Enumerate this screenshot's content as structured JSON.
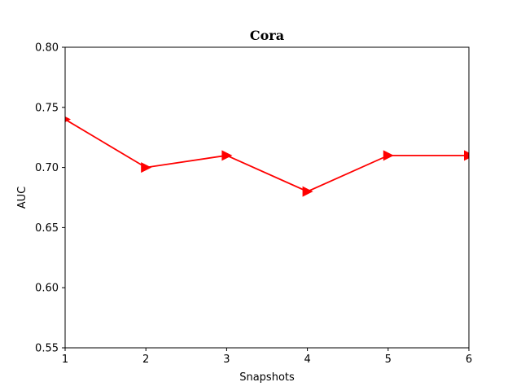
{
  "chart_data": {
    "type": "line",
    "title": "Cora",
    "xlabel": "Snapshots",
    "ylabel": "AUC",
    "x": [
      1,
      2,
      3,
      4,
      5,
      6
    ],
    "xticks": [
      "1",
      "2",
      "3",
      "4",
      "5",
      "6"
    ],
    "yticks": [
      "0.55",
      "0.60",
      "0.65",
      "0.70",
      "0.75",
      "0.80"
    ],
    "xlim": [
      1,
      6
    ],
    "ylim": [
      0.55,
      0.8
    ],
    "grid": false,
    "series": [
      {
        "values": [
          0.74,
          0.7,
          0.71,
          0.68,
          0.71,
          0.71
        ],
        "color": "#ff0000",
        "marker": "triangle-right"
      }
    ]
  }
}
